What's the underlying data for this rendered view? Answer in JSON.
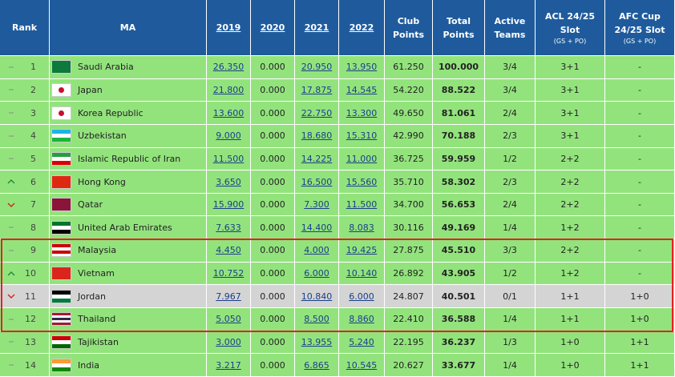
{
  "table": {
    "columns": [
      {
        "label": "Rank"
      },
      {
        "label": "MA"
      },
      {
        "label": "2019",
        "link": true
      },
      {
        "label": "2020",
        "link": true
      },
      {
        "label": "2021",
        "link": true
      },
      {
        "label": "2022",
        "link": true
      },
      {
        "label": "Club Points"
      },
      {
        "label": "Total Points"
      },
      {
        "label": "Active Teams"
      },
      {
        "label": "ACL 24/25 Slot",
        "note": "(GS + PO)"
      },
      {
        "label": "AFC Cup 24/25 Slot",
        "note": "(GS + PO)"
      }
    ],
    "rows": [
      {
        "trend": "same",
        "rank": 1,
        "name": "Saudi Arabia",
        "values": [
          "26.350",
          "0.000",
          "20.950",
          "13.950",
          "61.250",
          "100.000",
          "3/4",
          "3+1",
          "-"
        ]
      },
      {
        "trend": "same",
        "rank": 2,
        "name": "Japan",
        "values": [
          "21.800",
          "0.000",
          "17.875",
          "14.545",
          "54.220",
          "88.522",
          "3/4",
          "3+1",
          "-"
        ]
      },
      {
        "trend": "same",
        "rank": 3,
        "name": "Korea Republic",
        "values": [
          "13.600",
          "0.000",
          "22.750",
          "13.300",
          "49.650",
          "81.061",
          "2/4",
          "3+1",
          "-"
        ]
      },
      {
        "trend": "same",
        "rank": 4,
        "name": "Uzbekistan",
        "values": [
          "9.000",
          "0.000",
          "18.680",
          "15.310",
          "42.990",
          "70.188",
          "2/3",
          "3+1",
          "-"
        ]
      },
      {
        "trend": "same",
        "rank": 5,
        "name": "Islamic Republic of Iran",
        "values": [
          "11.500",
          "0.000",
          "14.225",
          "11.000",
          "36.725",
          "59.959",
          "1/2",
          "2+2",
          "-"
        ]
      },
      {
        "trend": "up",
        "rank": 6,
        "name": "Hong Kong",
        "values": [
          "3.650",
          "0.000",
          "16.500",
          "15.560",
          "35.710",
          "58.302",
          "2/3",
          "2+2",
          "-"
        ]
      },
      {
        "trend": "down",
        "rank": 7,
        "name": "Qatar",
        "values": [
          "15.900",
          "0.000",
          "7.300",
          "11.500",
          "34.700",
          "56.653",
          "2/4",
          "2+2",
          "-"
        ]
      },
      {
        "trend": "same",
        "rank": 8,
        "name": "United Arab Emirates",
        "values": [
          "7.633",
          "0.000",
          "14.400",
          "8.083",
          "30.116",
          "49.169",
          "1/4",
          "1+2",
          "-"
        ]
      },
      {
        "trend": "same",
        "rank": 9,
        "name": "Malaysia",
        "highlighted": true,
        "values": [
          "4.450",
          "0.000",
          "4.000",
          "19.425",
          "27.875",
          "45.510",
          "3/3",
          "2+2",
          "-"
        ]
      },
      {
        "trend": "up",
        "rank": 10,
        "name": "Vietnam",
        "highlighted": true,
        "values": [
          "10.752",
          "0.000",
          "6.000",
          "10.140",
          "26.892",
          "43.905",
          "1/2",
          "1+2",
          "-"
        ]
      },
      {
        "trend": "down",
        "rank": 11,
        "name": "Jordan",
        "highlighted": true,
        "shaded": true,
        "values": [
          "7.967",
          "0.000",
          "10.840",
          "6.000",
          "24.807",
          "40.501",
          "0/1",
          "1+1",
          "1+0"
        ]
      },
      {
        "trend": "same",
        "rank": 12,
        "name": "Thailand",
        "highlighted": true,
        "values": [
          "5.050",
          "0.000",
          "8.500",
          "8.860",
          "22.410",
          "36.588",
          "1/4",
          "1+1",
          "1+0"
        ]
      },
      {
        "trend": "same",
        "rank": 13,
        "name": "Tajikistan",
        "values": [
          "3.000",
          "0.000",
          "13.955",
          "5.240",
          "22.195",
          "36.237",
          "1/3",
          "1+0",
          "1+1"
        ]
      },
      {
        "trend": "same",
        "rank": 14,
        "name": "India",
        "values": [
          "3.217",
          "0.000",
          "6.865",
          "10.545",
          "20.627",
          "33.677",
          "1/4",
          "1+0",
          "1+1"
        ]
      }
    ]
  }
}
